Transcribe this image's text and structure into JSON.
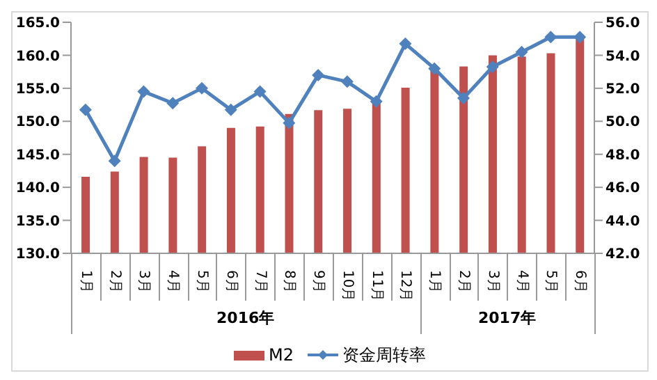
{
  "chart_data": {
    "type": "bar",
    "categories": [
      "1月",
      "2月",
      "3月",
      "4月",
      "5月",
      "6月",
      "7月",
      "8月",
      "9月",
      "10月",
      "11月",
      "12月",
      "1月",
      "2月",
      "3月",
      "4月",
      "5月",
      "6月"
    ],
    "series": [
      {
        "name": "M2",
        "color": "#c0504d",
        "values": [
          141.6,
          142.4,
          144.6,
          144.5,
          146.2,
          149.0,
          149.2,
          151.1,
          151.7,
          151.9,
          153.0,
          155.1,
          157.8,
          158.3,
          160.0,
          159.8,
          160.3,
          163.0
        ]
      },
      {
        "name": "资金周转率",
        "type": "line",
        "axis": "y2",
        "color": "#4f81bd",
        "values": [
          50.7,
          47.6,
          51.8,
          51.1,
          52.0,
          50.7,
          51.8,
          49.9,
          52.8,
          52.4,
          51.2,
          54.7,
          53.2,
          51.4,
          53.3,
          54.2,
          55.1,
          55.1
        ]
      }
    ],
    "ylim": [
      130,
      165
    ],
    "yticks": [
      {
        "value": 130,
        "label": "130.0"
      },
      {
        "value": 135,
        "label": "135.0"
      },
      {
        "value": 140,
        "label": "140.0"
      },
      {
        "value": 145,
        "label": "145.0"
      },
      {
        "value": 150,
        "label": "150.0"
      },
      {
        "value": 155,
        "label": "155.0"
      },
      {
        "value": 160,
        "label": "160.0"
      },
      {
        "value": 165,
        "label": "165.0"
      }
    ],
    "y2lim": [
      42,
      56
    ],
    "y2ticks": [
      {
        "value": 42,
        "label": "42.0"
      },
      {
        "value": 44,
        "label": "44.0"
      },
      {
        "value": 46,
        "label": "46.0"
      },
      {
        "value": 48,
        "label": "48.0"
      },
      {
        "value": 50,
        "label": "50.0"
      },
      {
        "value": 52,
        "label": "52.0"
      },
      {
        "value": 54,
        "label": "54.0"
      },
      {
        "value": 56,
        "label": "56.0"
      }
    ],
    "annotations": [
      "2016年",
      "2017年"
    ],
    "marker": "diamond",
    "legend": "bottom"
  }
}
